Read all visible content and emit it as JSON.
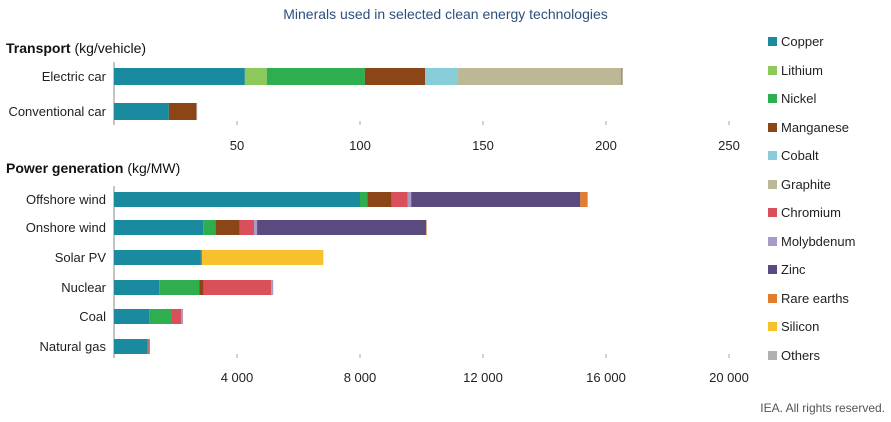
{
  "title": "Minerals used in selected clean energy technologies",
  "footer": "IEA. All rights reserved.",
  "sections": {
    "transport": {
      "bold": "Transport",
      "unit": " (kg/vehicle)"
    },
    "power": {
      "bold": "Power generation",
      "unit": " (kg/MW)"
    }
  },
  "minerals": [
    {
      "name": "Copper",
      "color": "#1a8a9e"
    },
    {
      "name": "Lithium",
      "color": "#8dc85a"
    },
    {
      "name": "Nickel",
      "color": "#2eae4e"
    },
    {
      "name": "Manganese",
      "color": "#8b4517"
    },
    {
      "name": "Cobalt",
      "color": "#86ccd9"
    },
    {
      "name": "Graphite",
      "color": "#bcb895"
    },
    {
      "name": "Chromium",
      "color": "#d9505a"
    },
    {
      "name": "Molybdenum",
      "color": "#a99ac8"
    },
    {
      "name": "Zinc",
      "color": "#5a4a80"
    },
    {
      "name": "Rare earths",
      "color": "#e07d2e"
    },
    {
      "name": "Silicon",
      "color": "#f7c12e"
    },
    {
      "name": "Others",
      "color": "#b0b0b0"
    }
  ],
  "chart_data": [
    {
      "type": "bar",
      "orientation": "horizontal",
      "stacked": true,
      "title": "Transport (kg/vehicle)",
      "xlim": [
        0,
        250
      ],
      "xticks": [
        "50",
        "100",
        "150",
        "200",
        "250"
      ],
      "xtick_values": [
        50,
        100,
        150,
        200,
        250
      ],
      "categories": [
        "Electric car",
        "Conventional car"
      ],
      "series": [
        {
          "name": "Copper",
          "values": [
            53.2,
            22.3
          ]
        },
        {
          "name": "Lithium",
          "values": [
            8.9,
            0
          ]
        },
        {
          "name": "Nickel",
          "values": [
            39.9,
            0
          ]
        },
        {
          "name": "Manganese",
          "values": [
            24.5,
            11.2
          ]
        },
        {
          "name": "Cobalt",
          "values": [
            13.3,
            0
          ]
        },
        {
          "name": "Graphite",
          "values": [
            66.3,
            0
          ]
        },
        {
          "name": "Chromium",
          "values": [
            0,
            0
          ]
        },
        {
          "name": "Molybdenum",
          "values": [
            0,
            0
          ]
        },
        {
          "name": "Zinc",
          "values": [
            0,
            0
          ]
        },
        {
          "name": "Rare earths",
          "values": [
            0.5,
            0
          ]
        },
        {
          "name": "Silicon",
          "values": [
            0,
            0
          ]
        },
        {
          "name": "Others",
          "values": [
            0.3,
            0.3
          ]
        }
      ]
    },
    {
      "type": "bar",
      "orientation": "horizontal",
      "stacked": true,
      "title": "Power generation (kg/MW)",
      "xlim": [
        0,
        20000
      ],
      "xticks": [
        "4 000",
        "8 000",
        "12 000",
        "16 000",
        "20 000"
      ],
      "xtick_values": [
        4000,
        8000,
        12000,
        16000,
        20000
      ],
      "categories": [
        "Offshore wind",
        "Onshore wind",
        "Solar PV",
        "Nuclear",
        "Coal",
        "Natural gas"
      ],
      "series": [
        {
          "name": "Copper",
          "values": [
            8000,
            2900,
            2822,
            1473,
            1150,
            1100
          ]
        },
        {
          "name": "Lithium",
          "values": [
            0,
            0,
            0,
            0,
            0,
            0
          ]
        },
        {
          "name": "Nickel",
          "values": [
            240,
            404,
            1,
            1297,
            721,
            16
          ]
        },
        {
          "name": "Manganese",
          "values": [
            790,
            780,
            0,
            148,
            0,
            0
          ]
        },
        {
          "name": "Cobalt",
          "values": [
            0,
            0,
            0,
            0,
            0,
            0
          ]
        },
        {
          "name": "Graphite",
          "values": [
            0,
            0,
            0,
            0,
            0,
            0
          ]
        },
        {
          "name": "Chromium",
          "values": [
            525,
            470,
            0,
            2190,
            308,
            48
          ]
        },
        {
          "name": "Molybdenum",
          "values": [
            109,
            99,
            0,
            70,
            66,
            0
          ]
        },
        {
          "name": "Zinc",
          "values": [
            5500,
            5500,
            30,
            0,
            0,
            0
          ]
        },
        {
          "name": "Rare earths",
          "values": [
            239,
            14,
            0,
            0,
            0,
            0
          ]
        },
        {
          "name": "Silicon",
          "values": [
            0,
            0,
            3955,
            0,
            0,
            0
          ]
        },
        {
          "name": "Others",
          "values": [
            0,
            0,
            0,
            0,
            0,
            0
          ]
        }
      ]
    }
  ]
}
